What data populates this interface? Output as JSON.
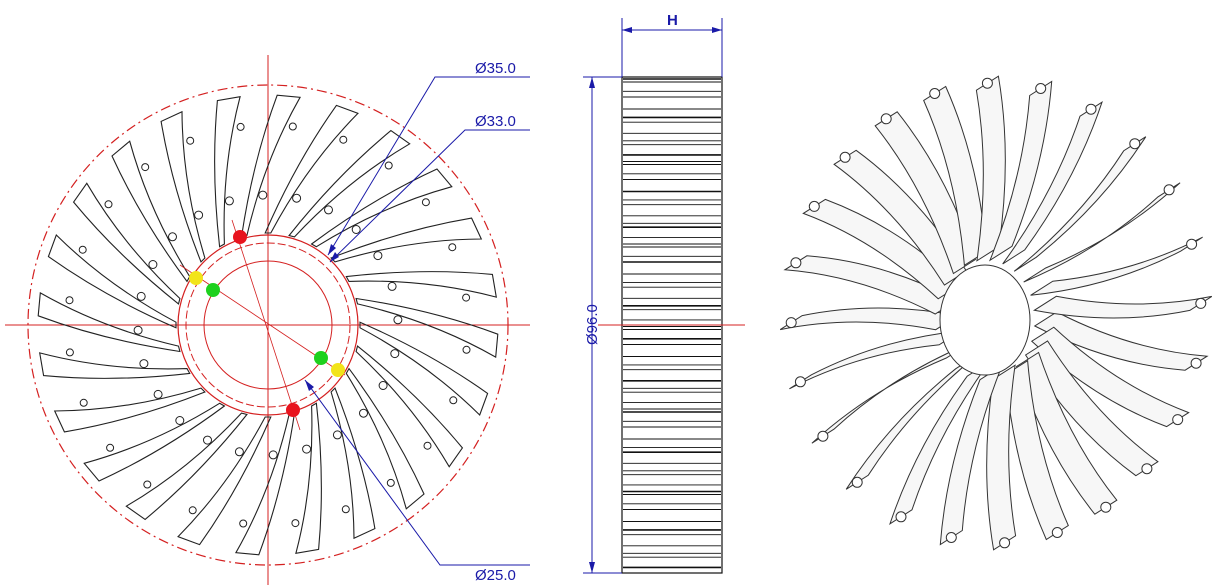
{
  "drawing": {
    "labels": {
      "dia_outer_ring": "Ø35.0",
      "dia_inner_ring": "Ø33.0",
      "dia_core": "Ø25.0",
      "dia_total": "Ø96.0",
      "height": "H"
    },
    "colors": {
      "dimension": "#1a1aa8",
      "centerline": "#d42020",
      "outline": "#222222",
      "marker_red": "#e8141e",
      "marker_yellow": "#f2e41a",
      "marker_green": "#1ed11e"
    },
    "fin_count": 24
  }
}
